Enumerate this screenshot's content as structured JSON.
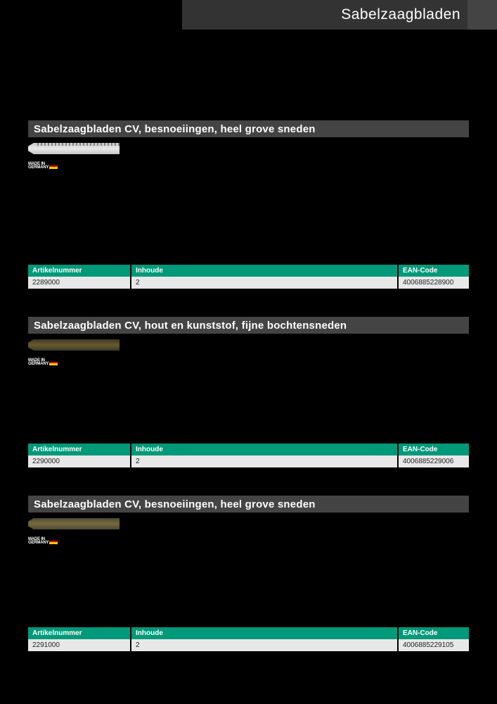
{
  "page": {
    "title": "Sabelzaagbladen",
    "header_bg": "#333333",
    "header_tail_bg": "#444444"
  },
  "sections": [
    {
      "title": "Sabelzaagbladen CV, besnoeiingen, heel grove sneden",
      "badge_line1": "MADE IN",
      "badge_line2": "GERMANY",
      "table": {
        "columns": [
          "Artikelnummer",
          "Inhoude",
          "EAN-Code"
        ],
        "rows": [
          [
            "2289000",
            "2",
            "4006885228900"
          ]
        ]
      }
    },
    {
      "title": "Sabelzaagbladen CV, hout en kunststof, fijne bochtensneden",
      "badge_line1": "MADE IN",
      "badge_line2": "GERMANY",
      "table": {
        "columns": [
          "Artikelnummer",
          "Inhoude",
          "EAN-Code"
        ],
        "rows": [
          [
            "2290000",
            "2",
            "4006885229006"
          ]
        ]
      }
    },
    {
      "title": "Sabelzaagbladen CV, besnoeiingen, heel grove sneden",
      "badge_line1": "MADE IN",
      "badge_line2": "GERMANY",
      "table": {
        "columns": [
          "Artikelnummer",
          "Inhoude",
          "EAN-Code"
        ],
        "rows": [
          [
            "2291000",
            "2",
            "4006885229105"
          ]
        ]
      }
    }
  ],
  "colors": {
    "section_header_bg": "#444444",
    "table_header_bg": "#009979",
    "table_row_bg": "#e8e8e8",
    "page_bg": "#000000",
    "text_white": "#ffffff"
  }
}
